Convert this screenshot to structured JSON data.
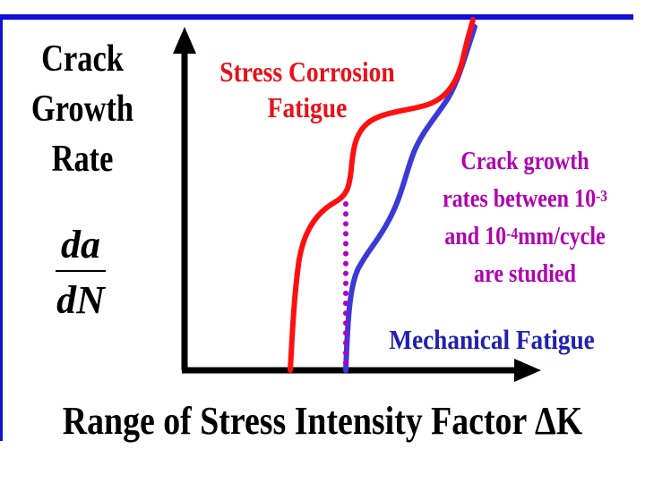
{
  "colors": {
    "border": "#1010d8",
    "stress_corrosion_curve": "#ff1010",
    "mechanical_curve": "#3a3ad8",
    "dotted_line": "#b000c8",
    "stress_corrosion_text": "#e8101a",
    "note_text": "#b000b0",
    "mechanical_text": "#2020b0"
  },
  "y_axis": {
    "label_lines": [
      "Crack",
      "Growth",
      "Rate"
    ],
    "fraction_numerator": "da",
    "fraction_denominator": "dN"
  },
  "x_axis": {
    "label": "Range of Stress Intensity Factor ΔK"
  },
  "curves": {
    "stress_corrosion_label_line1": "Stress Corrosion",
    "stress_corrosion_label_line2": "Fatigue",
    "mechanical_label": "Mechanical Fatigue"
  },
  "note": {
    "line1": "Crack growth",
    "line2_text": "rates between 10",
    "line2_sup": "-3",
    "line3_prefix": "and 10",
    "line3_sup": "-4",
    "line3_suffix": "mm/cycle",
    "line4": "are studied"
  }
}
